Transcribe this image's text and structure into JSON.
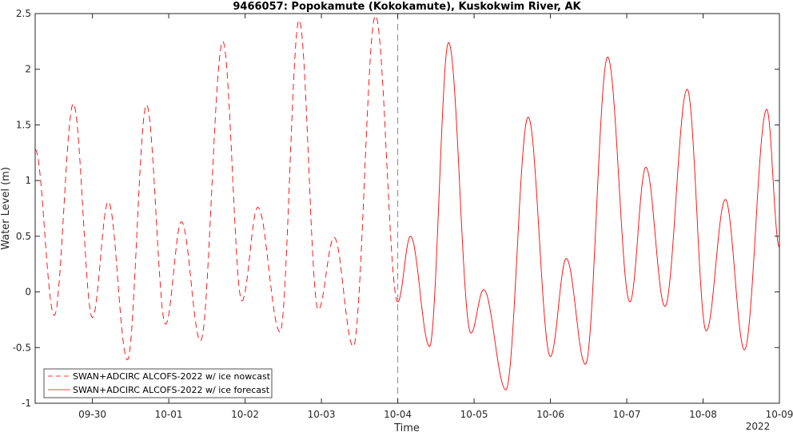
{
  "chart_data": {
    "type": "line",
    "title": "9466057: Popokamute (Kokokamute), Kuskokwim River, AK",
    "xlabel": "Time",
    "ylabel": "Water Level (m)",
    "xlim": [
      "09-29 06:00",
      "10-09 00:00"
    ],
    "ylim": [
      -1,
      2.5
    ],
    "x_ticks": [
      "09-30",
      "10-01",
      "10-02",
      "10-03",
      "10-04",
      "10-05",
      "10-06",
      "10-07",
      "10-08",
      "10-09"
    ],
    "x_year_label": "2022",
    "y_ticks": [
      "-1",
      "-0.5",
      "0",
      "0.5",
      "1",
      "1.5",
      "2",
      "2.5"
    ],
    "y_tick_values": [
      -1,
      -0.5,
      0,
      0.5,
      1,
      1.5,
      2,
      2.5
    ],
    "grid": false,
    "legend_position": "bottom-left",
    "nowcast_end": "10-04 00:00",
    "color": "#ff0000",
    "series": [
      {
        "name": "SWAN+ADCIRC ALCOFS-2022 w/ ice nowcast",
        "style": "dashed",
        "points": [
          [
            "09-29 06:00",
            1.28
          ],
          [
            "09-29 12:00",
            -0.21
          ],
          [
            "09-29 18:00",
            1.69
          ],
          [
            "09-30 00:00",
            -0.23
          ],
          [
            "09-30 05:00",
            0.81
          ],
          [
            "09-30 11:00",
            -0.61
          ],
          [
            "09-30 17:00",
            1.68
          ],
          [
            "09-30 23:00",
            -0.29
          ],
          [
            "10-01 04:00",
            0.63
          ],
          [
            "10-01 10:00",
            -0.44
          ],
          [
            "10-01 17:00",
            2.25
          ],
          [
            "10-01 23:00",
            -0.08
          ],
          [
            "10-02 04:00",
            0.76
          ],
          [
            "10-02 11:00",
            -0.36
          ],
          [
            "10-02 17:00",
            2.44
          ],
          [
            "10-02 23:00",
            -0.16
          ],
          [
            "10-03 04:00",
            0.49
          ],
          [
            "10-03 10:00",
            -0.49
          ],
          [
            "10-03 17:00",
            2.48
          ],
          [
            "10-04 00:00",
            -0.09
          ]
        ]
      },
      {
        "name": "SWAN+ADCIRC ALCOFS-2022 w/ ice forecast",
        "style": "solid",
        "points": [
          [
            "10-04 00:00",
            -0.09
          ],
          [
            "10-04 04:00",
            0.5
          ],
          [
            "10-04 10:00",
            -0.49
          ],
          [
            "10-04 16:00",
            2.24
          ],
          [
            "10-04 23:00",
            -0.37
          ],
          [
            "10-05 03:00",
            0.02
          ],
          [
            "10-05 10:00",
            -0.88
          ],
          [
            "10-05 17:00",
            1.57
          ],
          [
            "10-06 00:00",
            -0.58
          ],
          [
            "10-06 05:00",
            0.3
          ],
          [
            "10-06 11:00",
            -0.65
          ],
          [
            "10-06 18:00",
            2.11
          ],
          [
            "10-07 01:00",
            -0.09
          ],
          [
            "10-07 06:00",
            1.12
          ],
          [
            "10-07 12:00",
            -0.13
          ],
          [
            "10-07 19:00",
            1.82
          ],
          [
            "10-08 01:00",
            -0.35
          ],
          [
            "10-08 07:00",
            0.83
          ],
          [
            "10-08 13:00",
            -0.52
          ],
          [
            "10-08 20:00",
            1.64
          ],
          [
            "10-09 00:00",
            0.4
          ]
        ]
      }
    ]
  }
}
